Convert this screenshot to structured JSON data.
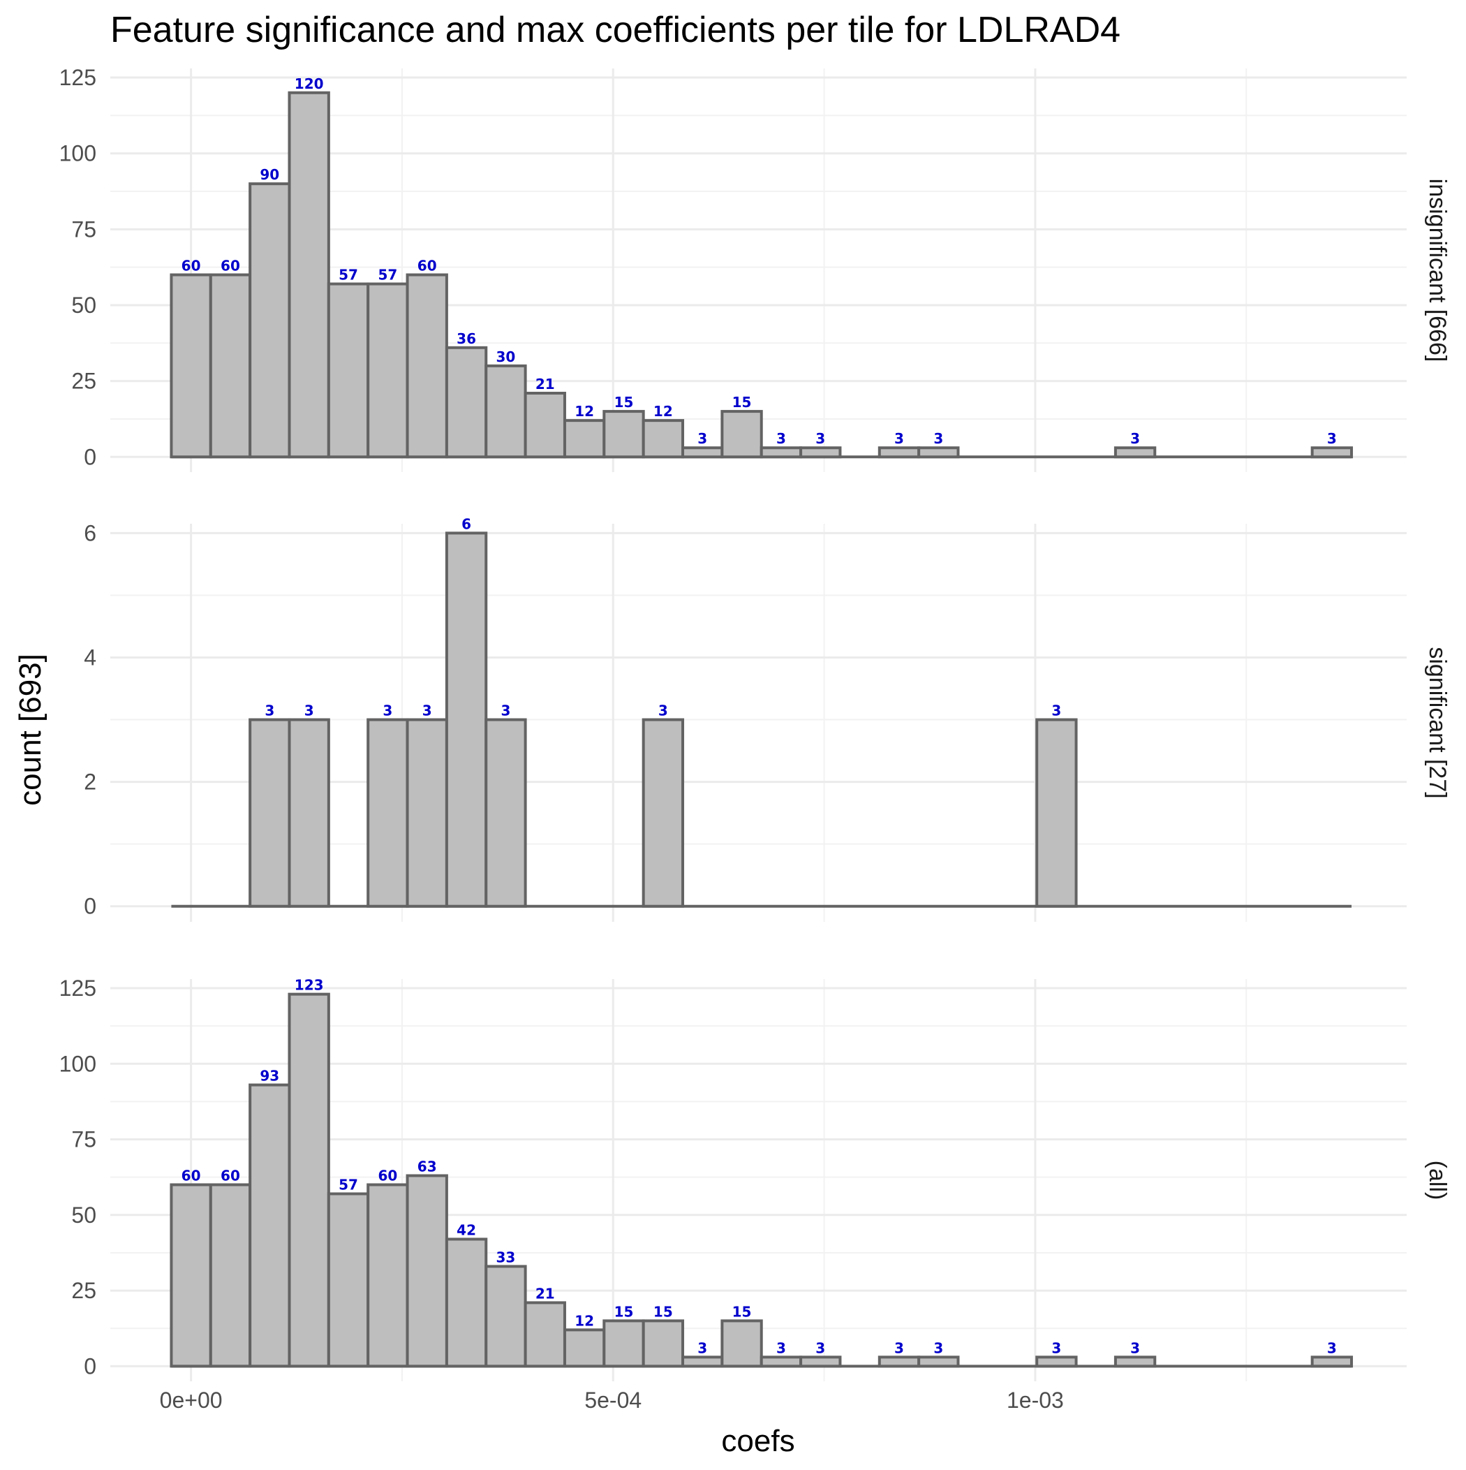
{
  "chart_data": {
    "type": "bar",
    "title": "Feature significance and max coefficients per tile for LDLRAD4",
    "xlabel": "coefs",
    "ylabel": "count [693]",
    "x_ticks": [
      {
        "value": 0,
        "label": "0e+00"
      },
      {
        "value": 0.0005,
        "label": "5e-04"
      },
      {
        "value": 0.001,
        "label": "1e-03"
      }
    ],
    "xlim": [
      -9.56e-05,
      0.00144
    ],
    "bin_width": 4.66e-05,
    "first_bin_left": -2.33e-05,
    "grid": true,
    "facets": [
      {
        "label": "insignificant [666]",
        "ylim": [
          -5,
          128
        ],
        "y_ticks": [
          0,
          25,
          50,
          75,
          100,
          125
        ],
        "values": [
          60,
          60,
          90,
          120,
          57,
          57,
          60,
          36,
          30,
          21,
          12,
          15,
          12,
          3,
          15,
          3,
          3,
          0,
          3,
          3,
          0,
          0,
          0,
          0,
          3,
          0,
          0,
          0,
          0,
          3
        ]
      },
      {
        "label": "significant [27]",
        "ylim": [
          -0.25,
          6.15
        ],
        "y_ticks": [
          0,
          2,
          4,
          6
        ],
        "values": [
          0,
          0,
          3,
          3,
          0,
          3,
          3,
          6,
          3,
          0,
          0,
          0,
          3,
          0,
          0,
          0,
          0,
          0,
          0,
          0,
          0,
          0,
          3,
          0,
          0,
          0,
          0,
          0,
          0,
          0
        ]
      },
      {
        "label": "(all)",
        "ylim": [
          -5,
          128
        ],
        "y_ticks": [
          0,
          25,
          50,
          75,
          100,
          125
        ],
        "values": [
          60,
          60,
          93,
          123,
          57,
          60,
          63,
          42,
          33,
          21,
          12,
          15,
          15,
          3,
          15,
          3,
          3,
          0,
          3,
          3,
          0,
          0,
          3,
          0,
          3,
          0,
          0,
          0,
          0,
          3
        ]
      }
    ]
  }
}
